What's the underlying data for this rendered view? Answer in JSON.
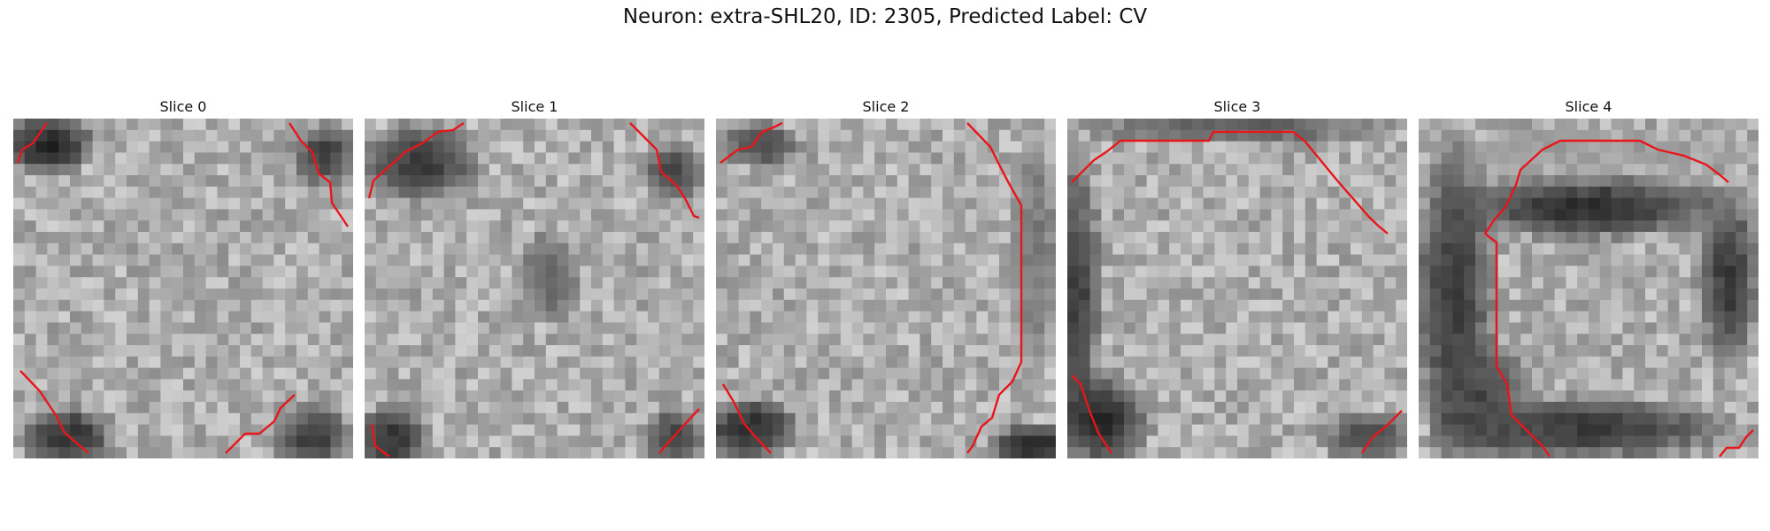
{
  "figure": {
    "title": "Neuron: extra-SHL20, ID: 2305, Predicted Label: CV"
  },
  "colors": {
    "contour": "#e8161b",
    "background": "#ffffff"
  },
  "panels": [
    {
      "title": "Slice 0"
    },
    {
      "title": "Slice 1"
    },
    {
      "title": "Slice 2"
    },
    {
      "title": "Slice 3"
    },
    {
      "title": "Slice 4"
    }
  ]
}
